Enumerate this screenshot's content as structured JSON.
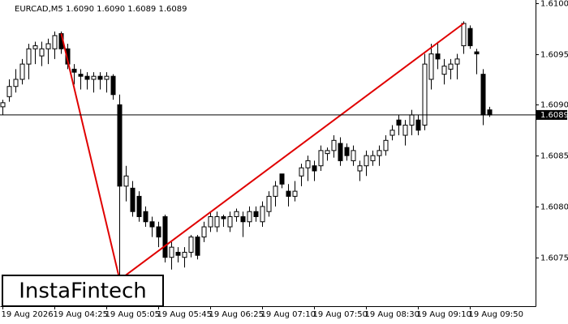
{
  "chart_data": {
    "type": "candlestick",
    "title": "EURCAD,M5  1.6090 1.6090 1.6089 1.6089",
    "watermark": "InstaFintech",
    "categories": [
      "19 Aug 2026",
      null,
      null,
      null,
      null,
      null,
      null,
      null,
      "19 Aug 04:25",
      null,
      null,
      null,
      null,
      null,
      null,
      null,
      "19 Aug 05:05",
      null,
      null,
      null,
      null,
      null,
      null,
      null,
      "19 Aug 05:45",
      null,
      null,
      null,
      null,
      null,
      null,
      null,
      "19 Aug 06:25",
      null,
      null,
      null,
      null,
      null,
      null,
      null,
      "19 Aug 07:10",
      null,
      null,
      null,
      null,
      null,
      null,
      null,
      "19 Aug 07:50",
      null,
      null,
      null,
      null,
      null,
      null,
      null,
      "19 Aug 08:30",
      null,
      null,
      null,
      null,
      null,
      null,
      null,
      "19 Aug 09:10",
      null,
      null,
      null,
      null,
      null,
      null,
      null,
      "19 Aug 09:50",
      null,
      null,
      null
    ],
    "open": [
      1.60898,
      1.60908,
      1.60918,
      1.60925,
      1.6094,
      1.60955,
      1.60948,
      1.60955,
      1.60955,
      1.6097,
      1.60955,
      1.60935,
      1.6093,
      1.60928,
      1.60925,
      1.60928,
      1.60925,
      1.60928,
      1.609,
      1.6082,
      1.60818,
      1.6081,
      1.60795,
      1.60785,
      1.6078,
      1.6079,
      1.6075,
      1.60755,
      1.6075,
      1.60755,
      1.6077,
      1.6077,
      1.6078,
      1.6078,
      1.6079,
      1.6078,
      1.6079,
      1.6079,
      1.60785,
      1.60795,
      1.60785,
      1.60795,
      1.6081,
      1.60832,
      1.60815,
      1.6081,
      1.6083,
      1.60838,
      1.6084,
      1.6084,
      1.60852,
      1.60855,
      1.60862,
      1.60858,
      1.60845,
      1.60835,
      1.6084,
      1.60845,
      1.6085,
      1.60855,
      1.6087,
      1.60885,
      1.6087,
      1.6088,
      1.60885,
      1.6088,
      1.60925,
      1.6095,
      1.6093,
      1.60935,
      1.6094,
      1.60958,
      1.60975,
      1.60952,
      1.6093,
      1.60895
    ],
    "high": [
      1.60905,
      1.60925,
      1.60935,
      1.60945,
      1.6096,
      1.60962,
      1.60962,
      1.60965,
      1.60972,
      1.60972,
      1.6096,
      1.6094,
      1.60935,
      1.60932,
      1.60932,
      1.60932,
      1.60932,
      1.6093,
      1.6091,
      1.6084,
      1.60825,
      1.60815,
      1.608,
      1.6079,
      1.60785,
      1.60792,
      1.60765,
      1.6076,
      1.6076,
      1.60772,
      1.60772,
      1.60785,
      1.60795,
      1.60795,
      1.60792,
      1.60795,
      1.60798,
      1.60795,
      1.608,
      1.608,
      1.60805,
      1.60815,
      1.60825,
      1.60832,
      1.60822,
      1.60825,
      1.60842,
      1.6085,
      1.60845,
      1.6086,
      1.60858,
      1.6087,
      1.60868,
      1.60862,
      1.6086,
      1.60845,
      1.60855,
      1.60855,
      1.6086,
      1.6087,
      1.6088,
      1.6089,
      1.60885,
      1.60895,
      1.6089,
      1.6095,
      1.6096,
      1.60962,
      1.60945,
      1.60945,
      1.6095,
      1.60982,
      1.60978,
      1.60955,
      1.60935,
      1.60898
    ],
    "low": [
      1.6089,
      1.60903,
      1.60912,
      1.6092,
      1.60925,
      1.6094,
      1.60938,
      1.6094,
      1.60945,
      1.6095,
      1.60935,
      1.6092,
      1.60915,
      1.60915,
      1.60912,
      1.60915,
      1.60912,
      1.60905,
      1.60728,
      1.60805,
      1.6079,
      1.60785,
      1.6078,
      1.6077,
      1.6076,
      1.60745,
      1.60738,
      1.60745,
      1.6074,
      1.6075,
      1.60748,
      1.60765,
      1.60775,
      1.60775,
      1.6078,
      1.60775,
      1.60785,
      1.6077,
      1.6078,
      1.60785,
      1.6078,
      1.6079,
      1.608,
      1.60818,
      1.608,
      1.60805,
      1.6082,
      1.60825,
      1.60825,
      1.60835,
      1.60845,
      1.60848,
      1.6084,
      1.60845,
      1.6084,
      1.60825,
      1.6083,
      1.6084,
      1.6084,
      1.6085,
      1.60865,
      1.6087,
      1.6086,
      1.6087,
      1.6087,
      1.60875,
      1.60915,
      1.60935,
      1.6092,
      1.60925,
      1.60925,
      1.6095,
      1.60955,
      1.6093,
      1.6088,
      1.60888
    ],
    "close": [
      1.60902,
      1.60918,
      1.60925,
      1.6094,
      1.60955,
      1.60958,
      1.60955,
      1.6096,
      1.60968,
      1.60955,
      1.6094,
      1.60932,
      1.60928,
      1.60925,
      1.60928,
      1.60925,
      1.60928,
      1.6091,
      1.6082,
      1.6083,
      1.60795,
      1.6079,
      1.60785,
      1.6078,
      1.6077,
      1.6075,
      1.6076,
      1.60752,
      1.60755,
      1.6077,
      1.60752,
      1.6078,
      1.6079,
      1.6079,
      1.60788,
      1.6079,
      1.60795,
      1.60785,
      1.60795,
      1.6079,
      1.608,
      1.6081,
      1.6082,
      1.60822,
      1.6081,
      1.60815,
      1.60838,
      1.60845,
      1.60835,
      1.60855,
      1.60855,
      1.60865,
      1.60845,
      1.6085,
      1.60855,
      1.6084,
      1.6085,
      1.6085,
      1.60855,
      1.60865,
      1.60875,
      1.6088,
      1.6088,
      1.6089,
      1.60875,
      1.6094,
      1.6095,
      1.60945,
      1.60938,
      1.6094,
      1.60945,
      1.6098,
      1.60958,
      1.6095,
      1.6089,
      1.6089
    ],
    "lines": [
      {
        "color": "#e00000",
        "x": [
          9,
          18
        ],
        "y": [
          1.6097,
          1.60728
        ]
      },
      {
        "color": "#e00000",
        "x": [
          18,
          71
        ],
        "y": [
          1.60728,
          1.6098
        ]
      }
    ],
    "current_price": {
      "value": 1.6089,
      "label": "1.6089"
    },
    "ylim": [
      1.60702,
      1.61003
    ],
    "yticks": [
      {
        "value": 1.61,
        "label": "1.6100"
      },
      1.6095,
      {
        "value": 1.609,
        "label": "1.6090"
      },
      1.6085,
      {
        "value": 1.608,
        "label": "1.6080"
      },
      1.6075
    ]
  }
}
